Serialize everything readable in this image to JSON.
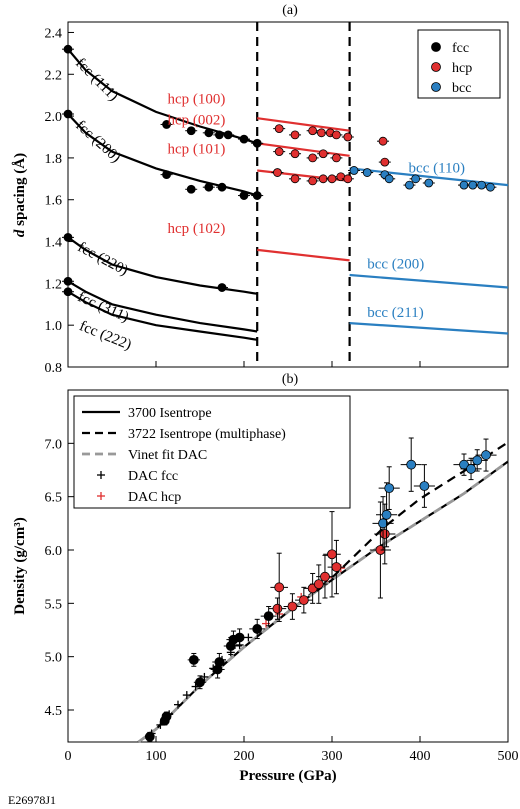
{
  "figure_id": "E26978J1",
  "colors": {
    "fcc": "#000000",
    "hcp": "#e03030",
    "bcc": "#2a7fc1",
    "vinet": "#999999",
    "dac_hcp": "#e03030"
  },
  "chart_data": [
    {
      "panel": "(a)",
      "type": "scatter",
      "ylabel_italic": "d",
      "ylabel_rest": " spacing (Å)",
      "xlim": [
        0,
        500
      ],
      "ylim": [
        0.8,
        2.45
      ],
      "yticks": [
        "0.8",
        "1.0",
        "1.2",
        "1.4",
        "1.6",
        "1.8",
        "2.0",
        "2.2",
        "2.4"
      ],
      "ytick_values": [
        0.8,
        1.0,
        1.2,
        1.4,
        1.6,
        1.8,
        2.0,
        2.2,
        2.4
      ],
      "phase_boundaries": [
        215,
        320
      ],
      "legend": {
        "placement": "top-right",
        "entries": [
          "fcc",
          "hcp",
          "bcc"
        ]
      },
      "lines": [
        {
          "phase": "fcc",
          "x": [
            0,
            20,
            50,
            100,
            150,
            200,
            215
          ],
          "y": [
            2.32,
            2.22,
            2.12,
            2.02,
            1.95,
            1.89,
            1.87
          ]
        },
        {
          "phase": "fcc",
          "x": [
            0,
            20,
            50,
            100,
            150,
            200,
            215
          ],
          "y": [
            2.01,
            1.92,
            1.83,
            1.75,
            1.69,
            1.64,
            1.62
          ]
        },
        {
          "phase": "fcc",
          "x": [
            0,
            20,
            50,
            100,
            150,
            200,
            215
          ],
          "y": [
            1.42,
            1.36,
            1.29,
            1.23,
            1.19,
            1.16,
            1.15
          ]
        },
        {
          "phase": "fcc",
          "x": [
            0,
            20,
            50,
            100,
            150,
            200,
            215
          ],
          "y": [
            1.21,
            1.16,
            1.1,
            1.05,
            1.01,
            0.98,
            0.97
          ]
        },
        {
          "phase": "fcc",
          "x": [
            0,
            20,
            50,
            100,
            150,
            200,
            215
          ],
          "y": [
            1.16,
            1.11,
            1.05,
            1.0,
            0.97,
            0.94,
            0.93
          ]
        },
        {
          "phase": "hcp",
          "x": [
            215,
            320
          ],
          "y": [
            1.99,
            1.93
          ]
        },
        {
          "phase": "hcp",
          "x": [
            215,
            320
          ],
          "y": [
            1.87,
            1.81
          ]
        },
        {
          "phase": "hcp",
          "x": [
            215,
            320
          ],
          "y": [
            1.74,
            1.69
          ]
        },
        {
          "phase": "hcp",
          "x": [
            215,
            320
          ],
          "y": [
            1.36,
            1.31
          ]
        },
        {
          "phase": "bcc",
          "x": [
            320,
            500
          ],
          "y": [
            1.75,
            1.67
          ]
        },
        {
          "phase": "bcc",
          "x": [
            320,
            500
          ],
          "y": [
            1.24,
            1.18
          ]
        },
        {
          "phase": "bcc",
          "x": [
            320,
            500
          ],
          "y": [
            1.01,
            0.96
          ]
        }
      ],
      "points": [
        {
          "phase": "fcc",
          "x": 0,
          "y": 2.32
        },
        {
          "phase": "fcc",
          "x": 0,
          "y": 2.01
        },
        {
          "phase": "fcc",
          "x": 0,
          "y": 1.42
        },
        {
          "phase": "fcc",
          "x": 0,
          "y": 1.21
        },
        {
          "phase": "fcc",
          "x": 0,
          "y": 1.16
        },
        {
          "phase": "fcc",
          "x": 112,
          "y": 1.96
        },
        {
          "phase": "fcc",
          "x": 140,
          "y": 1.93
        },
        {
          "phase": "fcc",
          "x": 160,
          "y": 1.92
        },
        {
          "phase": "fcc",
          "x": 172,
          "y": 1.91
        },
        {
          "phase": "fcc",
          "x": 182,
          "y": 1.91
        },
        {
          "phase": "fcc",
          "x": 200,
          "y": 1.89
        },
        {
          "phase": "fcc",
          "x": 215,
          "y": 1.87
        },
        {
          "phase": "fcc",
          "x": 112,
          "y": 1.72
        },
        {
          "phase": "fcc",
          "x": 140,
          "y": 1.65
        },
        {
          "phase": "fcc",
          "x": 160,
          "y": 1.66
        },
        {
          "phase": "fcc",
          "x": 175,
          "y": 1.66
        },
        {
          "phase": "fcc",
          "x": 200,
          "y": 1.62
        },
        {
          "phase": "fcc",
          "x": 215,
          "y": 1.62
        },
        {
          "phase": "fcc",
          "x": 175,
          "y": 1.18
        },
        {
          "phase": "hcp",
          "x": 240,
          "y": 1.94
        },
        {
          "phase": "hcp",
          "x": 258,
          "y": 1.91
        },
        {
          "phase": "hcp",
          "x": 278,
          "y": 1.93
        },
        {
          "phase": "hcp",
          "x": 288,
          "y": 1.92
        },
        {
          "phase": "hcp",
          "x": 298,
          "y": 1.92
        },
        {
          "phase": "hcp",
          "x": 305,
          "y": 1.91
        },
        {
          "phase": "hcp",
          "x": 318,
          "y": 1.9
        },
        {
          "phase": "hcp",
          "x": 240,
          "y": 1.83
        },
        {
          "phase": "hcp",
          "x": 258,
          "y": 1.82
        },
        {
          "phase": "hcp",
          "x": 278,
          "y": 1.8
        },
        {
          "phase": "hcp",
          "x": 290,
          "y": 1.82
        },
        {
          "phase": "hcp",
          "x": 305,
          "y": 1.8
        },
        {
          "phase": "hcp",
          "x": 238,
          "y": 1.73
        },
        {
          "phase": "hcp",
          "x": 258,
          "y": 1.7
        },
        {
          "phase": "hcp",
          "x": 278,
          "y": 1.69
        },
        {
          "phase": "hcp",
          "x": 290,
          "y": 1.7
        },
        {
          "phase": "hcp",
          "x": 300,
          "y": 1.7
        },
        {
          "phase": "hcp",
          "x": 310,
          "y": 1.71
        },
        {
          "phase": "hcp",
          "x": 318,
          "y": 1.7
        },
        {
          "phase": "hcp",
          "x": 358,
          "y": 1.88
        },
        {
          "phase": "hcp",
          "x": 360,
          "y": 1.78
        },
        {
          "phase": "bcc",
          "x": 325,
          "y": 1.74
        },
        {
          "phase": "bcc",
          "x": 340,
          "y": 1.73
        },
        {
          "phase": "bcc",
          "x": 360,
          "y": 1.72
        },
        {
          "phase": "bcc",
          "x": 365,
          "y": 1.7
        },
        {
          "phase": "bcc",
          "x": 388,
          "y": 1.67
        },
        {
          "phase": "bcc",
          "x": 395,
          "y": 1.7
        },
        {
          "phase": "bcc",
          "x": 410,
          "y": 1.68
        },
        {
          "phase": "bcc",
          "x": 450,
          "y": 1.67
        },
        {
          "phase": "bcc",
          "x": 460,
          "y": 1.67
        },
        {
          "phase": "bcc",
          "x": 470,
          "y": 1.67
        },
        {
          "phase": "bcc",
          "x": 480,
          "y": 1.66
        }
      ],
      "annotations": [
        {
          "text": "fcc (111)",
          "phase": "fcc",
          "x": 8,
          "y": 2.25,
          "rotate": 45
        },
        {
          "text": "fcc (200)",
          "phase": "fcc",
          "x": 8,
          "y": 1.95,
          "rotate": 42
        },
        {
          "text": "fcc (220)",
          "phase": "fcc",
          "x": 10,
          "y": 1.36,
          "rotate": 28
        },
        {
          "text": "fcc (311)",
          "phase": "fcc",
          "x": 10,
          "y": 1.12,
          "rotate": 24
        },
        {
          "text": "fcc (222)",
          "phase": "fcc",
          "x": 12,
          "y": 0.98,
          "rotate": 22
        },
        {
          "text": "hcp (100)",
          "phase": "hcp",
          "x": 113,
          "y": 2.06,
          "rotate": 0
        },
        {
          "text": "hcp (002)",
          "phase": "hcp",
          "x": 113,
          "y": 1.96,
          "rotate": 0
        },
        {
          "text": "hcp (101)",
          "phase": "hcp",
          "x": 113,
          "y": 1.82,
          "rotate": 0
        },
        {
          "text": "hcp (102)",
          "phase": "hcp",
          "x": 113,
          "y": 1.44,
          "rotate": 0
        },
        {
          "text": "bcc (110)",
          "phase": "bcc",
          "x": 387,
          "y": 1.73,
          "rotate": 0
        },
        {
          "text": "bcc (200)",
          "phase": "bcc",
          "x": 340,
          "y": 1.27,
          "rotate": 0
        },
        {
          "text": "bcc (211)",
          "phase": "bcc",
          "x": 340,
          "y": 1.04,
          "rotate": 0
        }
      ]
    },
    {
      "panel": "(b)",
      "type": "scatter",
      "xlabel": "Pressure (GPa)",
      "ylabel": "Density (g/cm³)",
      "xlim": [
        0,
        500
      ],
      "ylim": [
        4.2,
        7.5
      ],
      "xticks": [
        "0",
        "100",
        "200",
        "300",
        "400",
        "500"
      ],
      "xtick_values": [
        0,
        100,
        200,
        300,
        400,
        500
      ],
      "yticks": [
        "4.5",
        "5.0",
        "5.5",
        "6.0",
        "6.5",
        "7.0"
      ],
      "ytick_values": [
        4.5,
        5.0,
        5.5,
        6.0,
        6.5,
        7.0
      ],
      "legend": {
        "placement": "top-left",
        "entries": [
          {
            "label": "3700 Isentrope",
            "style": "solid",
            "color": "#000000"
          },
          {
            "label": "3722 Isentrope (multiphase)",
            "style": "dashed",
            "color": "#000000"
          },
          {
            "label": "Vinet fit DAC",
            "style": "dashed",
            "color": "#999999"
          },
          {
            "label": "DAC fcc",
            "style": "plus",
            "color": "#000000"
          },
          {
            "label": "DAC hcp",
            "style": "plus",
            "color": "#e03030"
          }
        ]
      },
      "series": [
        {
          "name": "3700 Isentrope",
          "x": [
            80,
            100,
            150,
            200,
            250,
            300,
            350,
            400,
            450,
            500
          ],
          "y": [
            4.2,
            4.32,
            4.73,
            5.09,
            5.42,
            5.72,
            6.01,
            6.27,
            6.53,
            6.83
          ]
        },
        {
          "name": "3722 Isentrope (multiphase)",
          "x": [
            80,
            100,
            150,
            200,
            250,
            300,
            330,
            360,
            400,
            450,
            500
          ],
          "y": [
            4.2,
            4.32,
            4.73,
            5.09,
            5.42,
            5.74,
            5.98,
            6.22,
            6.48,
            6.74,
            7.01
          ]
        },
        {
          "name": "Vinet fit DAC",
          "x": [
            80,
            100,
            150,
            200,
            250,
            300,
            350,
            400,
            450,
            500
          ],
          "y": [
            4.2,
            4.32,
            4.73,
            5.09,
            5.42,
            5.72,
            6.01,
            6.27,
            6.53,
            6.83
          ]
        }
      ],
      "dac_fcc": [
        {
          "x": 95,
          "y": 4.28
        },
        {
          "x": 105,
          "y": 4.36
        },
        {
          "x": 115,
          "y": 4.46
        },
        {
          "x": 125,
          "y": 4.55
        },
        {
          "x": 135,
          "y": 4.64
        },
        {
          "x": 145,
          "y": 4.72
        },
        {
          "x": 155,
          "y": 4.81
        },
        {
          "x": 165,
          "y": 4.89
        },
        {
          "x": 175,
          "y": 4.97
        },
        {
          "x": 185,
          "y": 5.04
        },
        {
          "x": 195,
          "y": 5.11
        },
        {
          "x": 205,
          "y": 5.18
        },
        {
          "x": 215,
          "y": 5.25
        }
      ],
      "dac_hcp": [
        {
          "x": 225,
          "y": 5.31
        },
        {
          "x": 240,
          "y": 5.4
        },
        {
          "x": 255,
          "y": 5.5
        },
        {
          "x": 265,
          "y": 5.56
        },
        {
          "x": 280,
          "y": 5.65
        },
        {
          "x": 295,
          "y": 5.74
        },
        {
          "x": 310,
          "y": 5.83
        }
      ],
      "points": [
        {
          "phase": "fcc",
          "x": 93,
          "y": 4.25,
          "xerr": 5,
          "yerr": 0.04
        },
        {
          "phase": "fcc",
          "x": 110,
          "y": 4.4,
          "xerr": 5,
          "yerr": 0.04
        },
        {
          "phase": "fcc",
          "x": 112,
          "y": 4.44,
          "xerr": 5,
          "yerr": 0.04
        },
        {
          "phase": "fcc",
          "x": 143,
          "y": 4.97,
          "xerr": 7,
          "yerr": 0.06
        },
        {
          "phase": "fcc",
          "x": 150,
          "y": 4.76,
          "xerr": 7,
          "yerr": 0.06
        },
        {
          "phase": "fcc",
          "x": 170,
          "y": 4.88,
          "xerr": 8,
          "yerr": 0.08
        },
        {
          "phase": "fcc",
          "x": 172,
          "y": 4.95,
          "xerr": 8,
          "yerr": 0.08
        },
        {
          "phase": "fcc",
          "x": 185,
          "y": 5.1,
          "xerr": 8,
          "yerr": 0.08
        },
        {
          "phase": "fcc",
          "x": 188,
          "y": 5.16,
          "xerr": 8,
          "yerr": 0.08
        },
        {
          "phase": "fcc",
          "x": 195,
          "y": 5.18,
          "xerr": 8,
          "yerr": 0.08
        },
        {
          "phase": "fcc",
          "x": 215,
          "y": 5.26,
          "xerr": 9,
          "yerr": 0.09
        },
        {
          "phase": "fcc",
          "x": 228,
          "y": 5.38,
          "xerr": 9,
          "yerr": 0.09
        },
        {
          "phase": "hcp",
          "x": 238,
          "y": 5.45,
          "xerr": 10,
          "yerr": 0.1
        },
        {
          "phase": "hcp",
          "x": 240,
          "y": 5.65,
          "xerr": 10,
          "yerr": 0.32
        },
        {
          "phase": "hcp",
          "x": 255,
          "y": 5.47,
          "xerr": 10,
          "yerr": 0.12
        },
        {
          "phase": "hcp",
          "x": 268,
          "y": 5.53,
          "xerr": 10,
          "yerr": 0.12
        },
        {
          "phase": "hcp",
          "x": 278,
          "y": 5.64,
          "xerr": 10,
          "yerr": 0.14
        },
        {
          "phase": "hcp",
          "x": 285,
          "y": 5.68,
          "xerr": 10,
          "yerr": 0.18
        },
        {
          "phase": "hcp",
          "x": 292,
          "y": 5.75,
          "xerr": 10,
          "yerr": 0.2
        },
        {
          "phase": "hcp",
          "x": 300,
          "y": 5.96,
          "xerr": 10,
          "yerr": 0.4
        },
        {
          "phase": "hcp",
          "x": 305,
          "y": 5.84,
          "xerr": 10,
          "yerr": 0.25
        },
        {
          "phase": "hcp",
          "x": 355,
          "y": 6.0,
          "xerr": 12,
          "yerr": 0.45
        },
        {
          "phase": "hcp",
          "x": 360,
          "y": 6.15,
          "xerr": 12,
          "yerr": 0.28
        },
        {
          "phase": "bcc",
          "x": 358,
          "y": 6.25,
          "xerr": 12,
          "yerr": 0.25
        },
        {
          "phase": "bcc",
          "x": 362,
          "y": 6.33,
          "xerr": 12,
          "yerr": 0.3
        },
        {
          "phase": "bcc",
          "x": 365,
          "y": 6.58,
          "xerr": 12,
          "yerr": 0.2
        },
        {
          "phase": "bcc",
          "x": 390,
          "y": 6.8,
          "xerr": 12,
          "yerr": 0.25
        },
        {
          "phase": "bcc",
          "x": 405,
          "y": 6.6,
          "xerr": 12,
          "yerr": 0.2
        },
        {
          "phase": "bcc",
          "x": 450,
          "y": 6.8,
          "xerr": 12,
          "yerr": 0.1
        },
        {
          "phase": "bcc",
          "x": 458,
          "y": 6.76,
          "xerr": 12,
          "yerr": 0.1
        },
        {
          "phase": "bcc",
          "x": 465,
          "y": 6.84,
          "xerr": 12,
          "yerr": 0.1
        },
        {
          "phase": "bcc",
          "x": 475,
          "y": 6.89,
          "xerr": 12,
          "yerr": 0.15
        }
      ]
    }
  ]
}
